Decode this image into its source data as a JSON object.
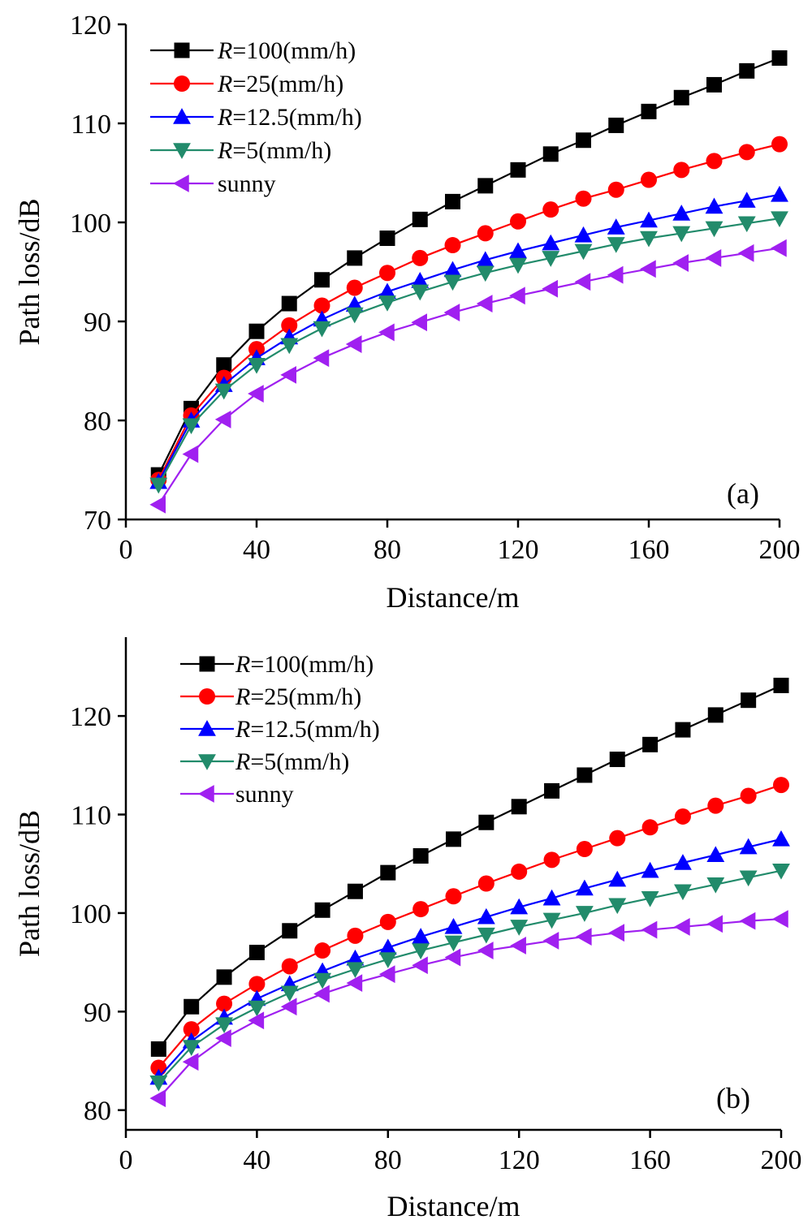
{
  "legend_prefix": "R",
  "colors": {
    "R=100": "#000000",
    "R=25": "#ff0000",
    "R=12.5": "#0000ff",
    "R=5": "#228b6b",
    "sunny": "#a020f0"
  },
  "chart_data": [
    {
      "type": "line",
      "panel": "(a)",
      "xlabel": "Distance/m",
      "ylabel": "Path loss/dB",
      "xlim": [
        0,
        200
      ],
      "ylim": [
        70,
        120
      ],
      "xticks": [
        0,
        40,
        80,
        120,
        160,
        200
      ],
      "yticks": [
        70,
        80,
        90,
        100,
        110,
        120
      ],
      "grid": false,
      "legend_position": "top-left",
      "x": [
        10,
        20,
        30,
        40,
        50,
        60,
        70,
        80,
        90,
        100,
        110,
        120,
        130,
        140,
        150,
        160,
        170,
        180,
        190,
        200
      ],
      "series": [
        {
          "name": "R=100(mm/h)",
          "legend_italic": "R",
          "legend_rest": "=100(mm/h)",
          "marker": "square",
          "color": "#000000",
          "values": [
            74.5,
            81.2,
            85.6,
            89.0,
            91.8,
            94.2,
            96.4,
            98.4,
            100.3,
            102.1,
            103.7,
            105.3,
            106.9,
            108.3,
            109.8,
            111.2,
            112.6,
            113.9,
            115.3,
            116.6
          ]
        },
        {
          "name": "R=25(mm/h)",
          "legend_italic": "R",
          "legend_rest": "=25(mm/h)",
          "marker": "circle",
          "color": "#ff0000",
          "values": [
            74.0,
            80.5,
            84.3,
            87.2,
            89.6,
            91.6,
            93.4,
            94.9,
            96.4,
            97.7,
            98.9,
            100.1,
            101.3,
            102.4,
            103.3,
            104.3,
            105.3,
            106.2,
            107.1,
            107.9
          ]
        },
        {
          "name": " R=12.5(mm/h)",
          "legend_italic": "R",
          "legend_rest": "=12.5(mm/h)",
          "legend_lead": " ",
          "marker": "triangle-up",
          "color": "#0000ff",
          "values": [
            73.8,
            80.0,
            83.6,
            86.3,
            88.4,
            90.2,
            91.7,
            93.0,
            94.1,
            95.2,
            96.2,
            97.1,
            97.9,
            98.7,
            99.5,
            100.2,
            100.9,
            101.6,
            102.2,
            102.8
          ]
        },
        {
          "name": "R=5(mm/h)",
          "legend_italic": "R",
          "legend_rest": "=5(mm/h)",
          "marker": "triangle-down",
          "color": "#228b6b",
          "values": [
            73.5,
            79.5,
            83.0,
            85.6,
            87.6,
            89.3,
            90.7,
            91.9,
            93.0,
            94.0,
            94.9,
            95.7,
            96.4,
            97.1,
            97.8,
            98.4,
            98.9,
            99.4,
            99.9,
            100.4
          ]
        },
        {
          "name": " sunny",
          "legend_italic": "",
          "legend_rest": "sunny",
          "legend_lead": " ",
          "marker": "triangle-left",
          "color": "#a020f0",
          "values": [
            71.5,
            76.6,
            80.1,
            82.7,
            84.6,
            86.3,
            87.7,
            88.9,
            89.9,
            90.9,
            91.8,
            92.6,
            93.3,
            94.0,
            94.7,
            95.3,
            95.9,
            96.4,
            96.9,
            97.4
          ]
        }
      ]
    },
    {
      "type": "line",
      "panel": "(b)",
      "xlabel": "Distance/m",
      "ylabel": "Path loss/dB",
      "xlim": [
        0,
        200
      ],
      "ylim": [
        78,
        128
      ],
      "xticks": [
        0,
        40,
        80,
        120,
        160,
        200
      ],
      "yticks": [
        80,
        90,
        100,
        110,
        120
      ],
      "grid": false,
      "legend_position": "top-left",
      "x": [
        10,
        20,
        30,
        40,
        50,
        60,
        70,
        80,
        90,
        100,
        110,
        120,
        130,
        140,
        150,
        160,
        170,
        180,
        190,
        200
      ],
      "series": [
        {
          "name": "R=100(mm/h)",
          "legend_italic": "R",
          "legend_rest": "=100(mm/h)",
          "marker": "square",
          "color": "#000000",
          "values": [
            86.2,
            90.5,
            93.5,
            96.0,
            98.2,
            100.3,
            102.2,
            104.1,
            105.8,
            107.5,
            109.2,
            110.8,
            112.4,
            114.0,
            115.6,
            117.1,
            118.6,
            120.1,
            121.6,
            123.1
          ]
        },
        {
          "name": "R=25(mm/h)",
          "legend_italic": "R",
          "legend_rest": "=25(mm/h)",
          "marker": "circle",
          "color": "#ff0000",
          "values": [
            84.3,
            88.2,
            90.8,
            92.8,
            94.6,
            96.2,
            97.7,
            99.1,
            100.4,
            101.7,
            103.0,
            104.2,
            105.4,
            106.5,
            107.6,
            108.7,
            109.8,
            110.9,
            111.9,
            113.0
          ]
        },
        {
          "name": "R=12.5(mm/h)",
          "legend_italic": "R",
          "legend_rest": "=12.5(mm/h)",
          "marker": "triangle-up",
          "color": "#0000ff",
          "values": [
            83.3,
            87.0,
            89.4,
            91.3,
            92.8,
            94.1,
            95.4,
            96.5,
            97.6,
            98.6,
            99.6,
            100.6,
            101.5,
            102.5,
            103.4,
            104.3,
            105.1,
            105.9,
            106.7,
            107.5
          ]
        },
        {
          "name": "R=5(mm/h)",
          "legend_italic": "R",
          "legend_rest": "=5(mm/h)",
          "marker": "triangle-down",
          "color": "#228b6b",
          "values": [
            82.8,
            86.4,
            88.7,
            90.4,
            91.9,
            93.2,
            94.3,
            95.3,
            96.2,
            97.0,
            97.8,
            98.6,
            99.3,
            100.0,
            100.8,
            101.5,
            102.2,
            102.9,
            103.6,
            104.3
          ]
        },
        {
          "name": "sunny",
          "legend_italic": "",
          "legend_rest": "sunny",
          "marker": "triangle-left",
          "color": "#a020f0",
          "values": [
            81.2,
            84.9,
            87.3,
            89.1,
            90.5,
            91.8,
            92.9,
            93.8,
            94.7,
            95.5,
            96.2,
            96.7,
            97.2,
            97.6,
            98.0,
            98.3,
            98.6,
            98.9,
            99.2,
            99.4
          ]
        }
      ]
    }
  ]
}
